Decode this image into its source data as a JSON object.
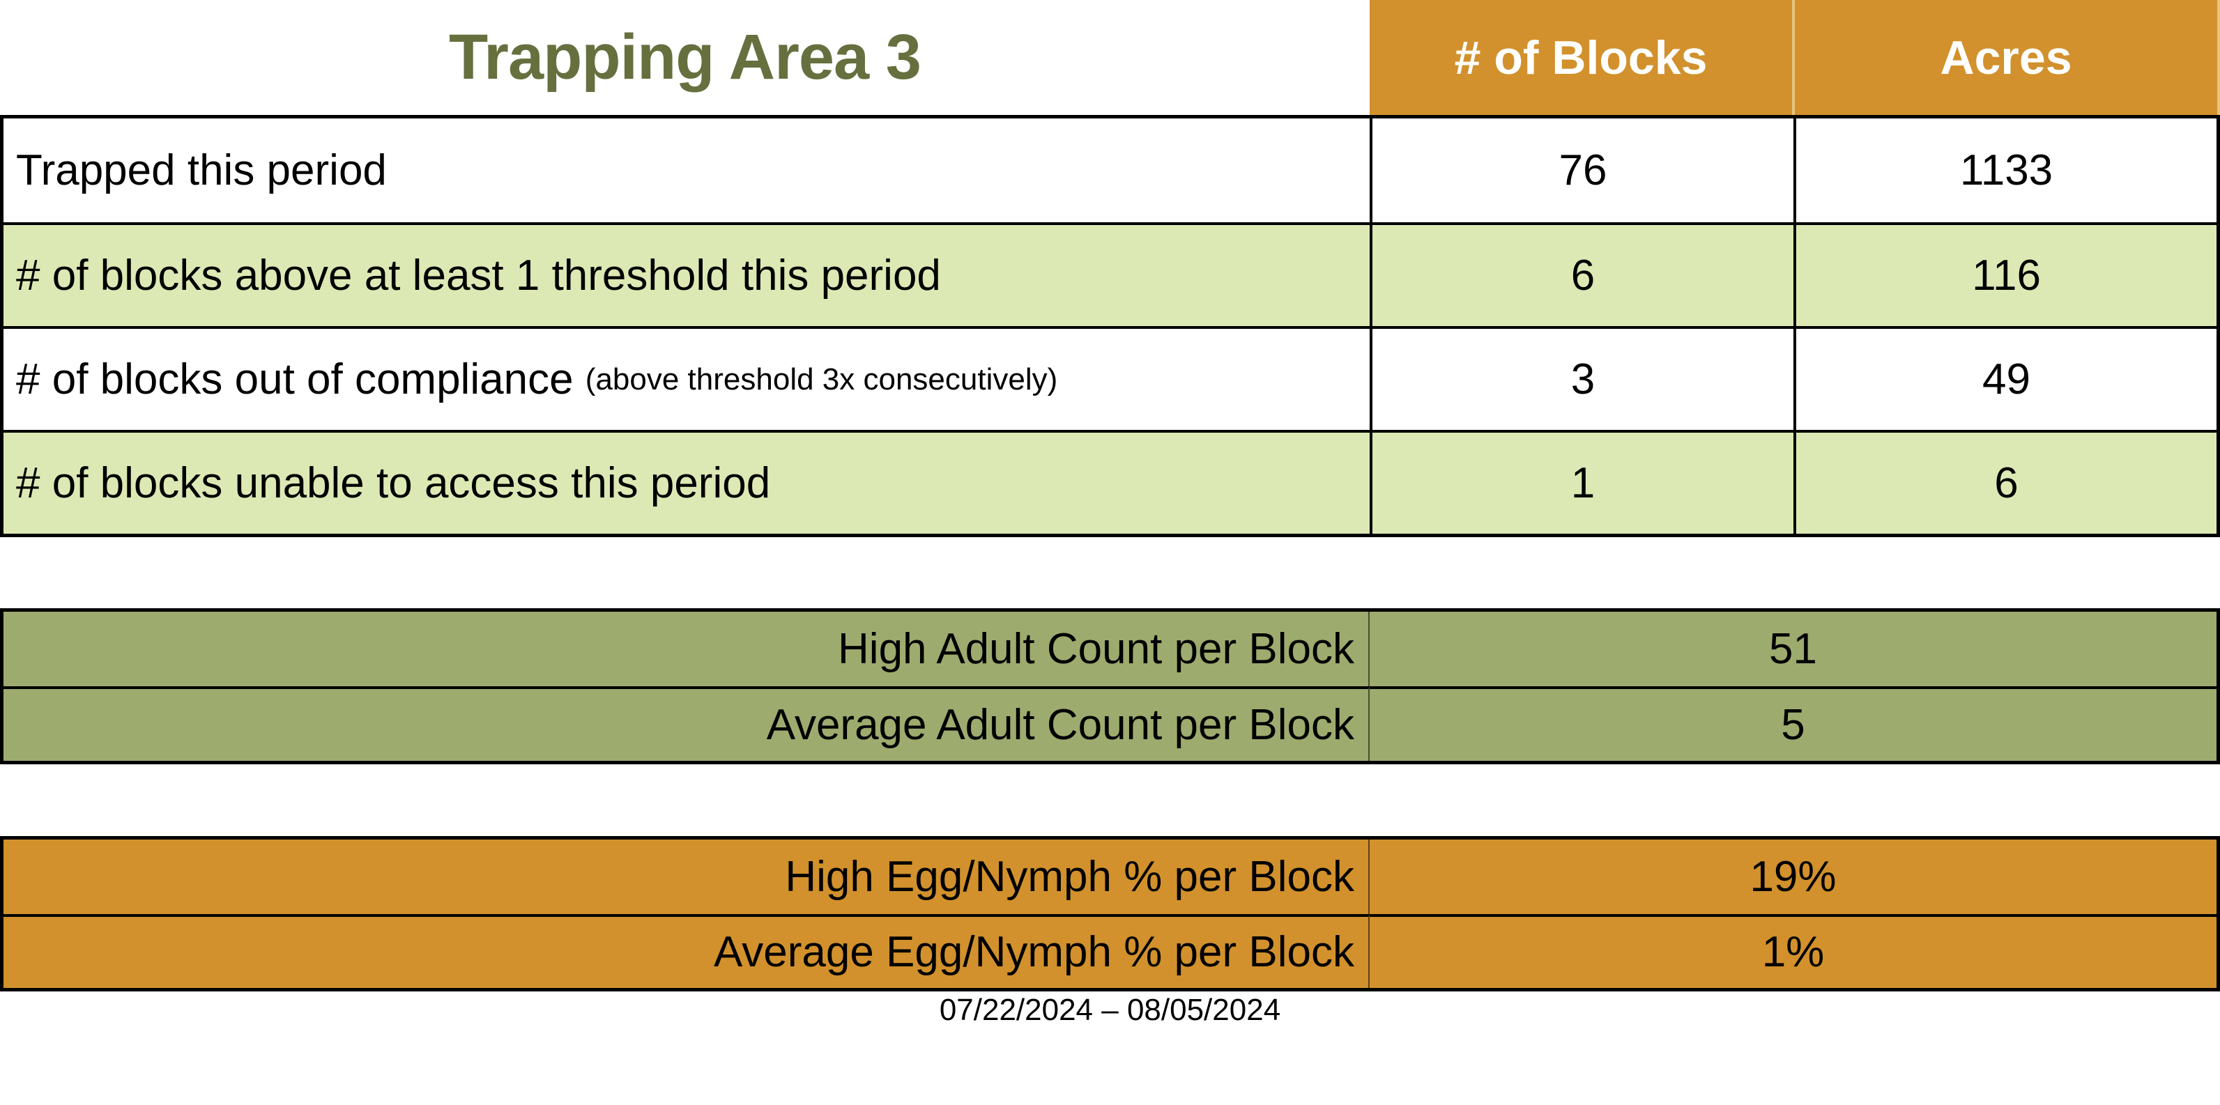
{
  "chart_data": {
    "type": "table",
    "title": "Trapping Area 3",
    "columns": [
      "# of Blocks",
      "Acres"
    ],
    "rows": [
      {
        "label": "Trapped this period",
        "note": "",
        "blocks": "76",
        "acres": "1133"
      },
      {
        "label": "# of blocks above at least 1 threshold this period",
        "note": "",
        "blocks": "6",
        "acres": "116"
      },
      {
        "label": "# of blocks out of compliance",
        "note": "(above threshold 3x consecutively)",
        "blocks": "3",
        "acres": "49"
      },
      {
        "label": "# of blocks unable to access this period",
        "note": "",
        "blocks": "1",
        "acres": "6"
      }
    ],
    "adult_counts": {
      "rows": [
        {
          "label": "High Adult Count per Block",
          "value": "51"
        },
        {
          "label": "Average Adult Count per Block",
          "value": "5"
        }
      ]
    },
    "egg_nymph": {
      "rows": [
        {
          "label": "High Egg/Nymph % per Block",
          "value": "19%"
        },
        {
          "label": "Average Egg/Nymph % per Block",
          "value": "1%"
        }
      ]
    },
    "date_range": "07/22/2024 – 08/05/2024"
  },
  "colors": {
    "header_orange": "#D2912C",
    "header_divider": "#E6C47B",
    "row_light_green": "#DCE9B4",
    "adult_olive": "#9DAB6E",
    "title_green": "#66703F",
    "border_black": "#000000",
    "header_text": "#FFFFFF"
  }
}
